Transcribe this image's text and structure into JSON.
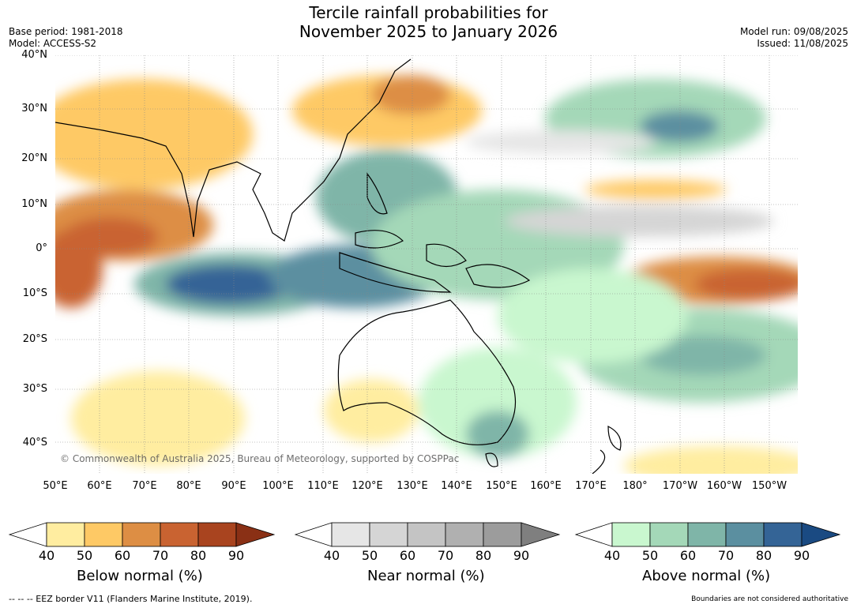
{
  "title": {
    "line1": "Tercile rainfall probabilities for",
    "line2": "November 2025 to January 2026"
  },
  "meta_left": {
    "base_period": "Base period: 1981-2018",
    "model": "Model: ACCESS-S2"
  },
  "meta_right": {
    "model_run": "Model run: 09/08/2025",
    "issued": "Issued: 11/08/2025"
  },
  "map": {
    "lat_labels": [
      "40°N",
      "30°N",
      "20°N",
      "10°N",
      "0°",
      "10°S",
      "20°S",
      "30°S",
      "40°S"
    ],
    "lon_labels": [
      "50°E",
      "60°E",
      "70°E",
      "80°E",
      "90°E",
      "100°E",
      "110°E",
      "120°E",
      "130°E",
      "140°E",
      "150°E",
      "160°E",
      "170°E",
      "180°",
      "170°W",
      "160°W",
      "150°W"
    ],
    "copyright": "© Commonwealth of Australia 2025, Bureau of Meteorology, supported by COSPPac"
  },
  "colorbars": [
    {
      "title": "Below normal (%)",
      "ticks": [
        "40",
        "50",
        "60",
        "70",
        "80",
        "90"
      ],
      "colors": [
        "#ffeda0",
        "#fec965",
        "#dd8e44",
        "#c96331",
        "#a9441f",
        "#8a3015"
      ]
    },
    {
      "title": "Near normal (%)",
      "ticks": [
        "40",
        "50",
        "60",
        "70",
        "80",
        "90"
      ],
      "colors": [
        "#e6e6e6",
        "#d5d5d5",
        "#c4c4c4",
        "#b0b0b0",
        "#9c9c9c",
        "#7f7f7f"
      ]
    },
    {
      "title": "Above normal (%)",
      "ticks": [
        "40",
        "50",
        "60",
        "70",
        "80",
        "90"
      ],
      "colors": [
        "#c9f7cf",
        "#a4d8b8",
        "#7fb5a8",
        "#5b8fa0",
        "#346496",
        "#1a4a82"
      ]
    }
  ],
  "footer": {
    "left": "-- -- -- EEZ border V11 (Flanders Marine Institute, 2019).",
    "right": "Boundaries are not considered authoritative"
  }
}
